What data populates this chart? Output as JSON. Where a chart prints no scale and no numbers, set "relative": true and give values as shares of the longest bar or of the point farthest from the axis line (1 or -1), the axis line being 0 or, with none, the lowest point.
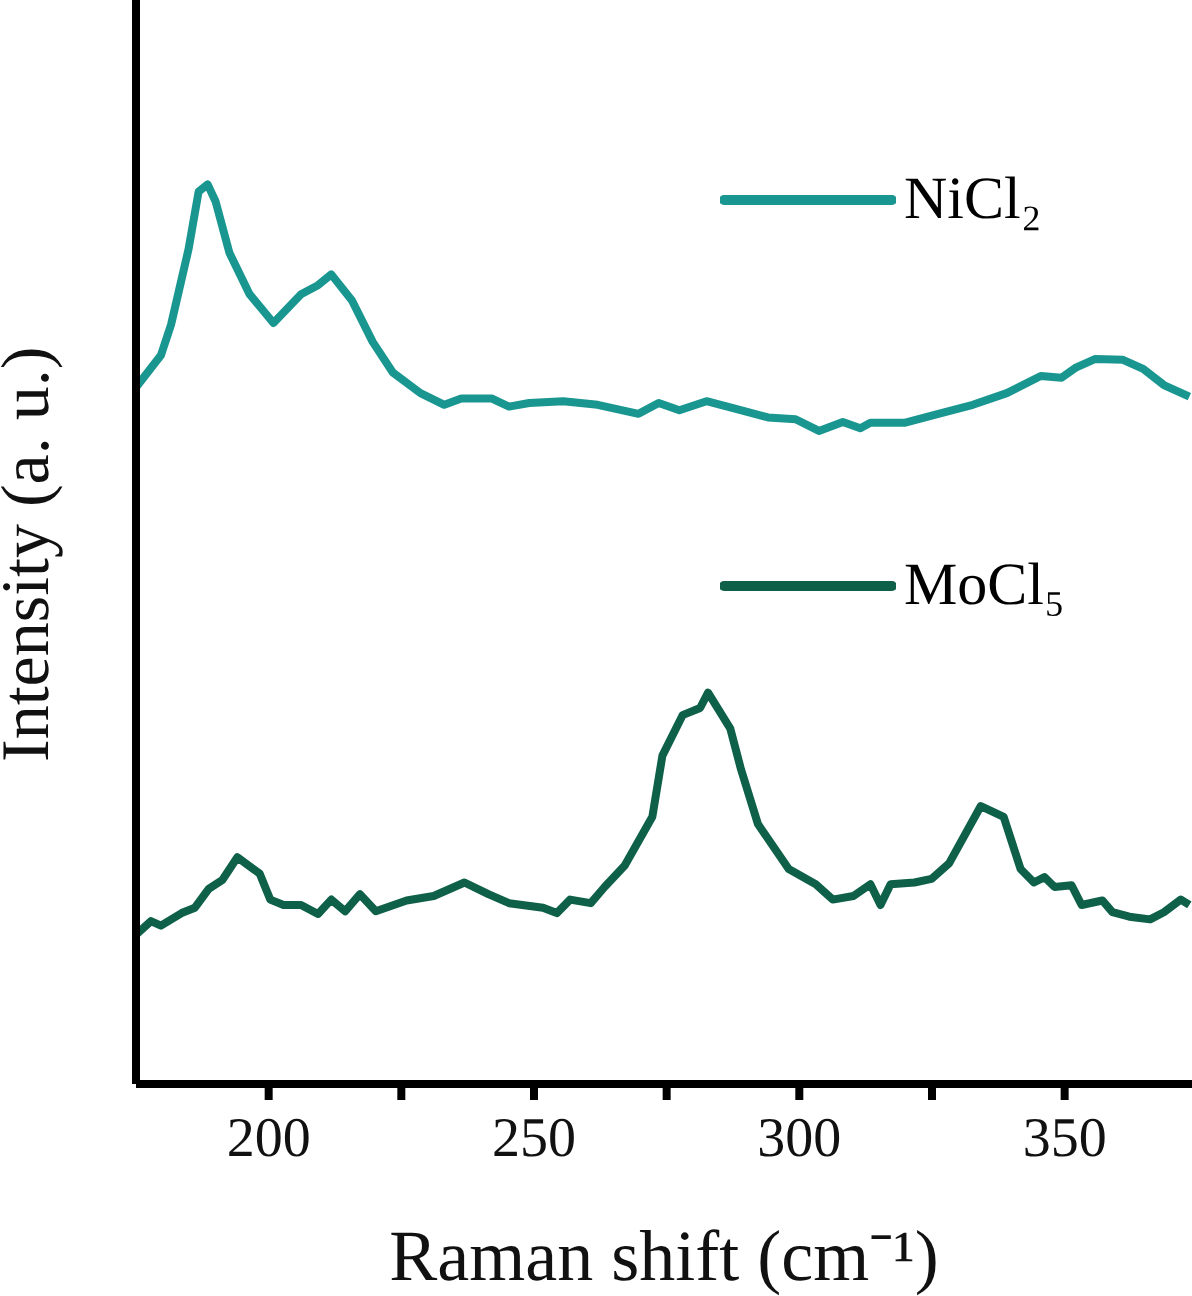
{
  "chart_data": {
    "type": "line",
    "relative": true,
    "xlabel": "Raman shift (cm⁻¹)",
    "ylabel": "Intensity (a. u.)",
    "xlim": [
      175,
      374
    ],
    "xticks": [
      200,
      {
        "value": 225,
        "label": null
      },
      250,
      {
        "value": 275,
        "label": null
      },
      300,
      {
        "value": 325,
        "label": null
      },
      350
    ],
    "legend": "top right",
    "grid": false,
    "marker": "none",
    "line_style": "solid",
    "series": [
      {
        "name": "NiCl₂",
        "color": "#1a9690",
        "x": [
          175.2,
          179.7,
          181.6,
          184.9,
          186.8,
          188.5,
          190,
          192.6,
          196.4,
          200.9,
          206.1,
          209.3,
          211.8,
          215.7,
          219.6,
          223.4,
          228.6,
          233.1,
          236.3,
          242.1,
          245.3,
          249.1,
          255.5,
          262,
          269.7,
          273.5,
          277.4,
          282.5,
          287.7,
          294.1,
          299.3,
          303.7,
          308.2,
          311.5,
          313.4,
          319.8,
          326.2,
          332.7,
          339.1,
          345.5,
          349.4,
          352,
          355.8,
          361,
          364.8,
          368.7,
          373.5
        ],
        "values": [
          0.776,
          0.81,
          0.844,
          0.928,
          0.992,
          1.0,
          0.981,
          0.924,
          0.878,
          0.846,
          0.878,
          0.888,
          0.9,
          0.871,
          0.825,
          0.791,
          0.768,
          0.755,
          0.762,
          0.762,
          0.753,
          0.757,
          0.759,
          0.755,
          0.745,
          0.757,
          0.749,
          0.759,
          0.751,
          0.741,
          0.739,
          0.726,
          0.736,
          0.729,
          0.735,
          0.735,
          0.745,
          0.755,
          0.768,
          0.787,
          0.785,
          0.796,
          0.806,
          0.805,
          0.795,
          0.777,
          0.764
        ]
      },
      {
        "name": "MoCl₅",
        "color": "#0f6048",
        "x": [
          175.2,
          177.8,
          179.7,
          183.6,
          186.1,
          188.7,
          191.3,
          194.1,
          197.1,
          198.3,
          200.3,
          202.8,
          206.1,
          209.3,
          211.8,
          214.4,
          217.2,
          220.2,
          226,
          231.1,
          236.9,
          241.4,
          245.3,
          251.7,
          254.3,
          256.8,
          260.7,
          263.3,
          267.1,
          272.3,
          274.2,
          278,
          281.3,
          282.8,
          287,
          289,
          292.2,
          298,
          303.1,
          306.3,
          310.2,
          313.4,
          315.3,
          317.2,
          321.7,
          324.9,
          328.2,
          334.2,
          338.5,
          341.7,
          344.2,
          346.2,
          348.1,
          351.3,
          353.2,
          357.1,
          359,
          362.2,
          366.1,
          368.7,
          371.9,
          373.5
        ],
        "values": [
          0.167,
          0.181,
          0.176,
          0.19,
          0.196,
          0.217,
          0.227,
          0.252,
          0.239,
          0.234,
          0.205,
          0.199,
          0.199,
          0.189,
          0.205,
          0.192,
          0.211,
          0.192,
          0.204,
          0.209,
          0.224,
          0.211,
          0.201,
          0.196,
          0.19,
          0.205,
          0.201,
          0.219,
          0.243,
          0.297,
          0.365,
          0.41,
          0.418,
          0.435,
          0.395,
          0.35,
          0.289,
          0.239,
          0.222,
          0.205,
          0.209,
          0.222,
          0.199,
          0.222,
          0.224,
          0.228,
          0.245,
          0.309,
          0.297,
          0.239,
          0.224,
          0.23,
          0.219,
          0.221,
          0.199,
          0.204,
          0.191,
          0.186,
          0.183,
          0.191,
          0.205,
          0.199
        ]
      }
    ]
  }
}
